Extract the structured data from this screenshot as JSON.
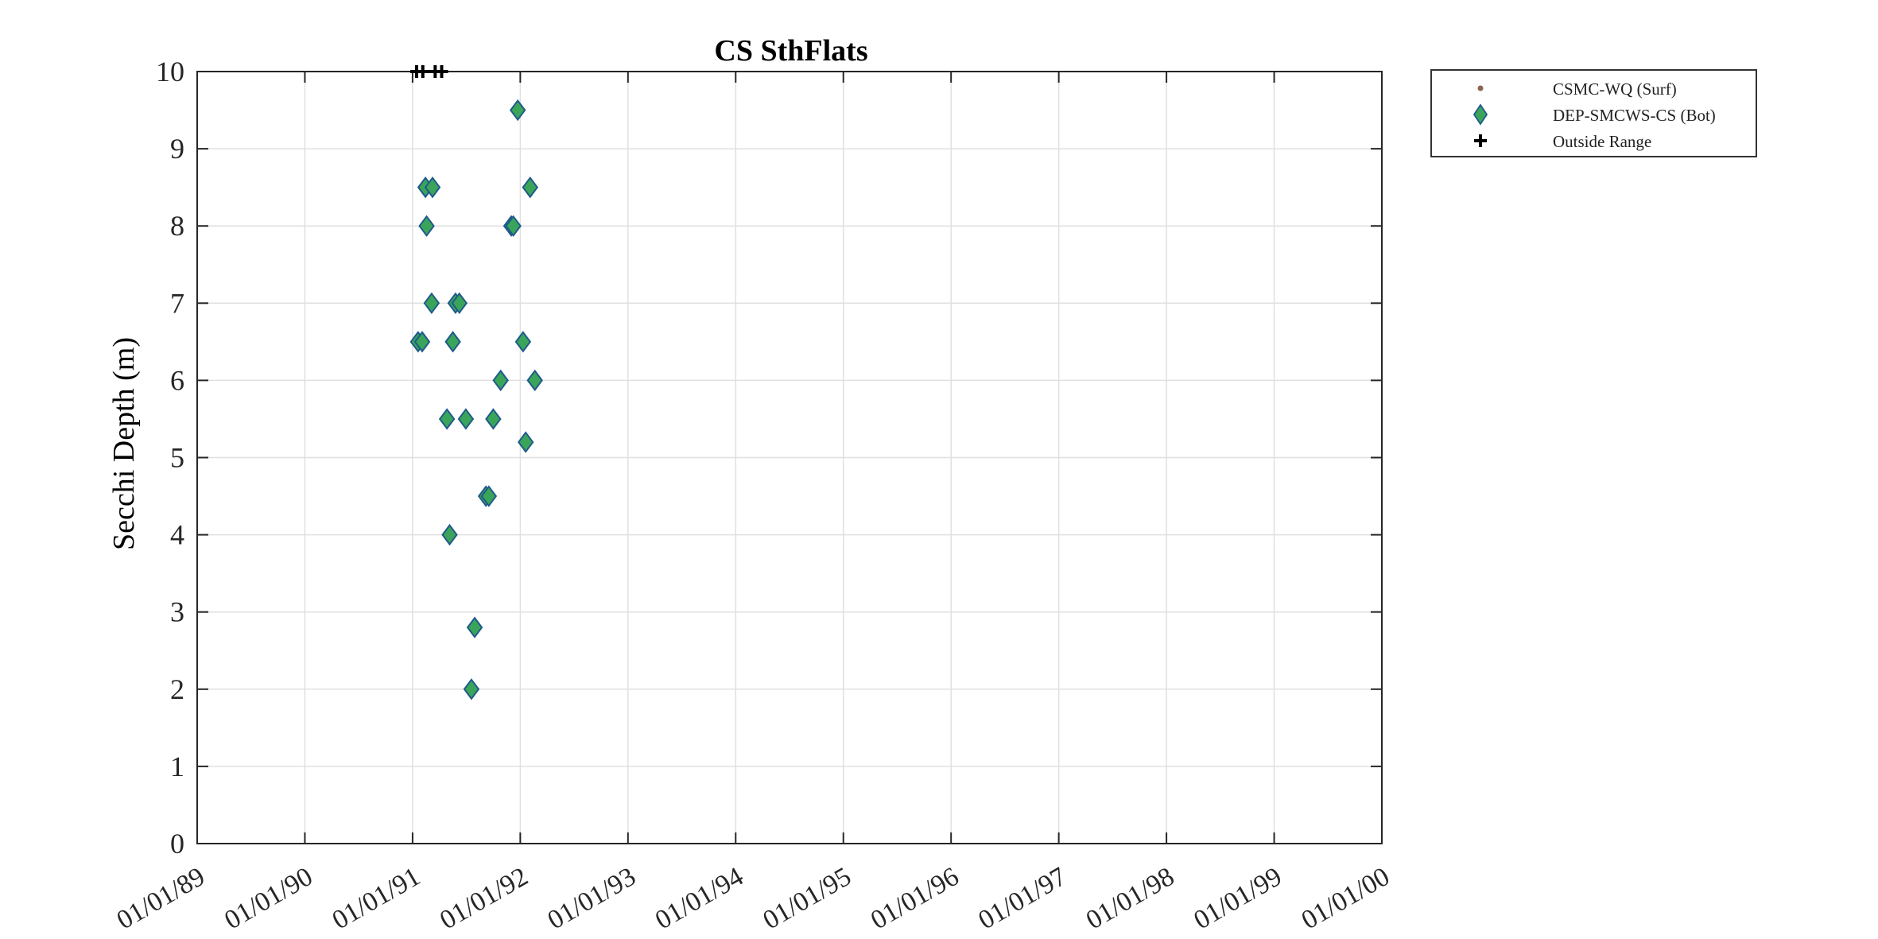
{
  "chart_data": {
    "type": "scatter",
    "title": "CS SthFlats",
    "xlabel": "",
    "ylabel": "Secchi Depth (m)",
    "ylim": [
      0,
      10
    ],
    "xlim": [
      "1989-01-01",
      "2000-01-01"
    ],
    "x_tick_labels": [
      "01/01/89",
      "01/01/90",
      "01/01/91",
      "01/01/92",
      "01/01/93",
      "01/01/94",
      "01/01/95",
      "01/01/96",
      "01/01/97",
      "01/01/98",
      "01/01/99",
      "01/01/00"
    ],
    "y_tick_labels": [
      "0",
      "1",
      "2",
      "3",
      "4",
      "5",
      "6",
      "7",
      "8",
      "9",
      "10"
    ],
    "grid": true,
    "legend_position": "outside-top-right",
    "series": [
      {
        "name": "CSMC-WQ (Surf)",
        "marker": "dot",
        "color": "#8c6450",
        "points": []
      },
      {
        "name": "DEP-SMCWS-CS (Bot)",
        "marker": "diamond",
        "color": "#3aa55a",
        "edge_color": "#1f5a8a",
        "points": [
          {
            "x": "1991-01-20",
            "y": 6.5
          },
          {
            "x": "1991-02-03",
            "y": 6.5
          },
          {
            "x": "1991-02-14",
            "y": 8.5
          },
          {
            "x": "1991-02-18",
            "y": 8.0
          },
          {
            "x": "1991-03-10",
            "y": 8.5
          },
          {
            "x": "1991-03-07",
            "y": 7.0
          },
          {
            "x": "1991-04-28",
            "y": 5.5
          },
          {
            "x": "1991-05-07",
            "y": 4.0
          },
          {
            "x": "1991-05-18",
            "y": 6.5
          },
          {
            "x": "1991-05-27",
            "y": 7.0
          },
          {
            "x": "1991-06-09",
            "y": 7.0
          },
          {
            "x": "1991-07-01",
            "y": 5.5
          },
          {
            "x": "1991-07-20",
            "y": 2.0
          },
          {
            "x": "1991-07-31",
            "y": 2.8
          },
          {
            "x": "1991-09-07",
            "y": 4.5
          },
          {
            "x": "1991-09-17",
            "y": 4.5
          },
          {
            "x": "1991-10-02",
            "y": 5.5
          },
          {
            "x": "1991-10-27",
            "y": 6.0
          },
          {
            "x": "1991-12-02",
            "y": 8.0
          },
          {
            "x": "1991-12-09",
            "y": 8.0
          },
          {
            "x": "1991-12-24",
            "y": 9.5
          },
          {
            "x": "1992-01-11",
            "y": 6.5
          },
          {
            "x": "1992-01-20",
            "y": 5.2
          },
          {
            "x": "1992-02-04",
            "y": 8.5
          },
          {
            "x": "1992-02-20",
            "y": 6.0
          }
        ]
      },
      {
        "name": "Outside Range",
        "marker": "plus",
        "color": "#000000",
        "points": [
          {
            "x": "1991-01-15",
            "y": 10
          },
          {
            "x": "1991-02-05",
            "y": 10
          },
          {
            "x": "1991-03-19",
            "y": 10
          },
          {
            "x": "1991-04-10",
            "y": 10
          }
        ]
      }
    ]
  }
}
